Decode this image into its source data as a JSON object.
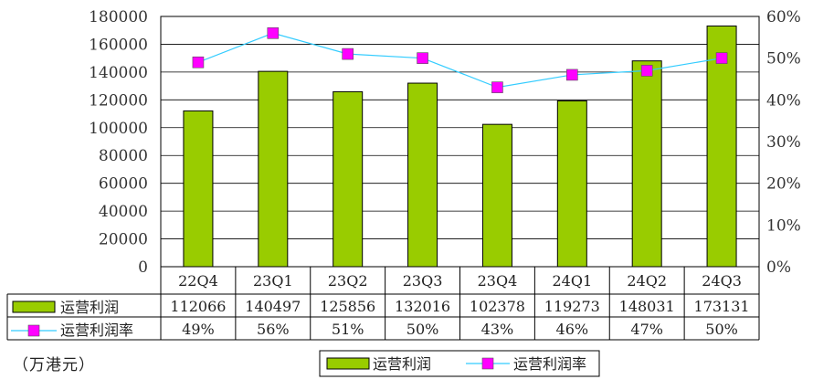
{
  "chart_data": {
    "type": "bar",
    "categories": [
      "22Q4",
      "23Q1",
      "23Q2",
      "23Q3",
      "23Q4",
      "24Q1",
      "24Q2",
      "24Q3"
    ],
    "series": [
      {
        "name": "运营利润",
        "kind": "bar",
        "axis": "left",
        "values": [
          112066,
          140497,
          125856,
          132016,
          102378,
          119273,
          148031,
          173131
        ],
        "color": "#99cc00"
      },
      {
        "name": "运营利润率",
        "kind": "line",
        "axis": "right",
        "values": [
          0.49,
          0.56,
          0.51,
          0.5,
          0.43,
          0.46,
          0.47,
          0.5
        ],
        "color": "#33ccff",
        "marker_color": "#ff00ff"
      }
    ],
    "left_ylim": [
      0,
      180000
    ],
    "left_ticks": [
      "180000",
      "160000",
      "140000",
      "120000",
      "100000",
      "80000",
      "60000",
      "40000",
      "20000",
      "0"
    ],
    "right_ylim": [
      0,
      0.6
    ],
    "right_ticks": [
      "60%",
      "50%",
      "40%",
      "30%",
      "20%",
      "10%",
      "0%"
    ],
    "table_rows": [
      [
        "112066",
        "140497",
        "125856",
        "132016",
        "102378",
        "119273",
        "148031",
        "173131"
      ],
      [
        "49%",
        "56%",
        "51%",
        "50%",
        "43%",
        "46%",
        "47%",
        "50%"
      ]
    ],
    "grid": true,
    "legend_position": "bottom-center",
    "unit_note": "（万港元）"
  }
}
